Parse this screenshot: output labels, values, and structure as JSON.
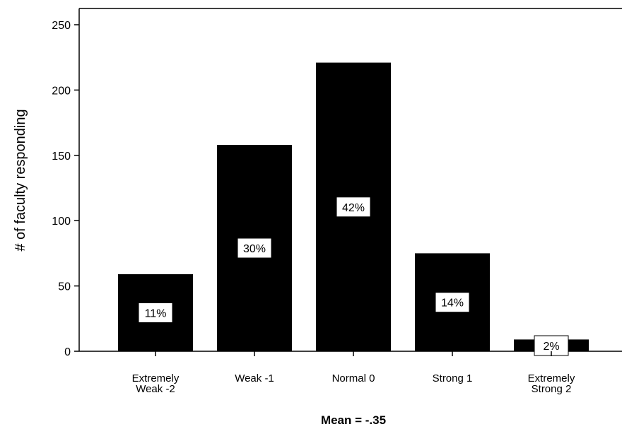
{
  "chart_data": {
    "type": "bar",
    "categories": [
      [
        "Extremely",
        "Weak  -2"
      ],
      [
        "Weak  -1"
      ],
      [
        "Normal  0"
      ],
      [
        "Strong  1"
      ],
      [
        "Extremely",
        "Strong  2"
      ]
    ],
    "values": [
      59,
      158,
      221,
      75,
      9
    ],
    "percent_labels": [
      "11%",
      "30%",
      "42%",
      "14%",
      "2%"
    ],
    "xlabel": "Mean = -.35",
    "ylabel": "# of faculty responding",
    "ylim": [
      0,
      250
    ],
    "yticks": [
      0,
      50,
      100,
      150,
      200,
      250
    ],
    "grid": false,
    "bar_color": "#000000",
    "label_box_color": "#ffffff"
  }
}
